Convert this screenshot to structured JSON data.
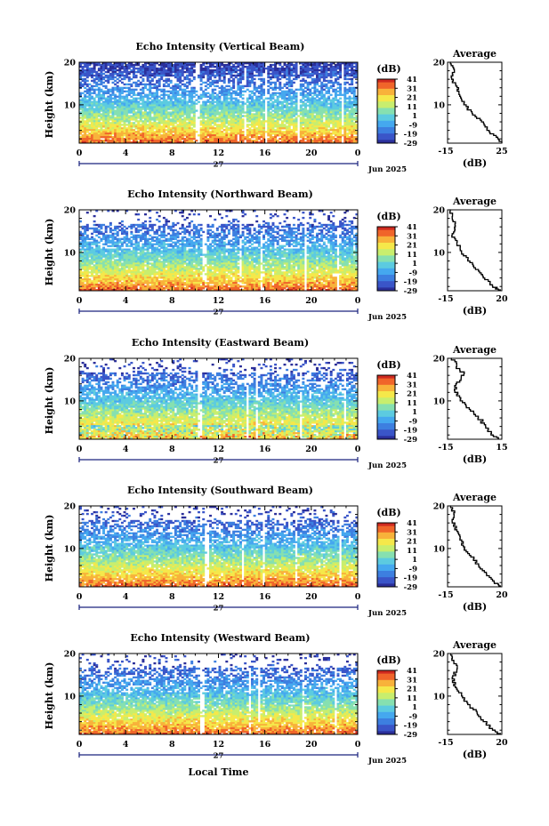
{
  "figure": {
    "x_axis_label": "Local Time",
    "y_axis_label": "Height (km)",
    "colorbar_unit": "(dB)",
    "colorbar_ticks": [
      "41",
      "31",
      "21",
      "11",
      "1",
      "-9",
      "-19",
      "-29"
    ],
    "day_label": "27",
    "month_label": "Jun 2025",
    "avg_title": "Average",
    "avg_xlabel": "(dB)"
  },
  "colors": {
    "colormap": [
      "#2b2f9a",
      "#3a55c8",
      "#3d7fe0",
      "#45a8ef",
      "#5ccbe0",
      "#86e0b0",
      "#c8ee6e",
      "#f5e84a",
      "#f8b23a",
      "#f0652a",
      "#cf2a20"
    ],
    "axis": "#000000",
    "time_marker": "#1a237e"
  },
  "chart_data": [
    {
      "type": "heatmap",
      "title": "Echo Intensity (Vertical Beam)",
      "xlabel": "",
      "ylabel": "Height (km)",
      "xticks": [
        "0",
        "4",
        "8",
        "12",
        "16",
        "20",
        "0"
      ],
      "xlim": [
        0,
        24
      ],
      "ylim": [
        1,
        20
      ],
      "yticks": [
        "10",
        "20"
      ],
      "colorbar": {
        "unit": "(dB)",
        "range": [
          -29,
          41
        ],
        "ticks": [
          41,
          31,
          21,
          11,
          1,
          -9,
          -19,
          -29
        ]
      },
      "profile": {
        "title": "Average",
        "xlabel": "(dB)",
        "xticks": [
          "-15",
          "25"
        ],
        "xlim": [
          -15,
          25
        ],
        "heights": [
          20,
          18,
          16,
          14,
          12,
          10,
          8,
          6,
          4,
          2,
          1
        ],
        "values": [
          -13,
          -10,
          -12,
          -8,
          -6,
          -3,
          3,
          10,
          14,
          22,
          25
        ]
      }
    },
    {
      "type": "heatmap",
      "title": "Echo Intensity (Northward Beam)",
      "xlabel": "",
      "ylabel": "Height (km)",
      "xticks": [
        "0",
        "4",
        "8",
        "12",
        "16",
        "20",
        "0"
      ],
      "xlim": [
        0,
        24
      ],
      "ylim": [
        1,
        20
      ],
      "yticks": [
        "10",
        "20"
      ],
      "colorbar": {
        "unit": "(dB)",
        "range": [
          -29,
          41
        ],
        "ticks": [
          41,
          31,
          21,
          11,
          1,
          -9,
          -19,
          -29
        ]
      },
      "profile": {
        "title": "Average",
        "xlabel": "(dB)",
        "xticks": [
          "-15",
          "20"
        ],
        "xlim": [
          -15,
          20
        ],
        "heights": [
          20,
          18,
          16,
          14,
          12,
          10,
          8,
          6,
          4,
          2,
          1
        ],
        "values": [
          -13,
          -12,
          -10,
          -12,
          -9,
          -6,
          -2,
          3,
          8,
          14,
          19
        ]
      }
    },
    {
      "type": "heatmap",
      "title": "Echo Intensity (Eastward Beam)",
      "xlabel": "",
      "ylabel": "Height (km)",
      "xticks": [
        "0",
        "4",
        "8",
        "12",
        "16",
        "20",
        "0"
      ],
      "xlim": [
        0,
        24
      ],
      "ylim": [
        1,
        20
      ],
      "yticks": [
        "10",
        "20"
      ],
      "colorbar": {
        "unit": "(dB)",
        "range": [
          -29,
          41
        ],
        "ticks": [
          41,
          31,
          21,
          11,
          1,
          -9,
          -19,
          -29
        ]
      },
      "profile": {
        "title": "Average",
        "xlabel": "(dB)",
        "xticks": [
          "-15",
          "15"
        ],
        "xlim": [
          -15,
          15
        ],
        "heights": [
          20,
          18,
          16,
          14,
          12,
          10,
          8,
          6,
          4,
          2,
          1
        ],
        "values": [
          -13,
          -10,
          -6,
          -10,
          -11,
          -8,
          -3,
          2,
          6,
          9,
          13
        ]
      }
    },
    {
      "type": "heatmap",
      "title": "Echo Intensity (Southward Beam)",
      "xlabel": "",
      "ylabel": "Height (km)",
      "xticks": [
        "0",
        "4",
        "8",
        "12",
        "16",
        "20",
        "0"
      ],
      "xlim": [
        0,
        24
      ],
      "ylim": [
        1,
        20
      ],
      "yticks": [
        "10",
        "20"
      ],
      "colorbar": {
        "unit": "(dB)",
        "range": [
          -29,
          41
        ],
        "ticks": [
          41,
          31,
          21,
          11,
          1,
          -9,
          -19,
          -29
        ]
      },
      "profile": {
        "title": "Average",
        "xlabel": "(dB)",
        "xticks": [
          "-15",
          "20"
        ],
        "xlim": [
          -15,
          20
        ],
        "heights": [
          20,
          18,
          16,
          14,
          12,
          10,
          8,
          6,
          4,
          2,
          1
        ],
        "values": [
          -13,
          -11,
          -12,
          -9,
          -7,
          -4,
          0,
          5,
          10,
          15,
          19
        ]
      }
    },
    {
      "type": "heatmap",
      "title": "Echo Intensity (Westward Beam)",
      "xlabel": "Local Time",
      "ylabel": "Height (km)",
      "xticks": [
        "0",
        "4",
        "8",
        "12",
        "16",
        "20",
        "0"
      ],
      "xlim": [
        0,
        24
      ],
      "ylim": [
        1,
        20
      ],
      "yticks": [
        "10",
        "20"
      ],
      "colorbar": {
        "unit": "(dB)",
        "range": [
          -29,
          41
        ],
        "ticks": [
          41,
          31,
          21,
          11,
          1,
          -9,
          -19,
          -29
        ]
      },
      "profile": {
        "title": "Average",
        "xlabel": "(dB)",
        "xticks": [
          "-15",
          "20"
        ],
        "xlim": [
          -15,
          20
        ],
        "heights": [
          20,
          18,
          16,
          14,
          12,
          10,
          8,
          6,
          4,
          2,
          1
        ],
        "values": [
          -13,
          -11,
          -9,
          -12,
          -10,
          -6,
          -2,
          4,
          8,
          14,
          19
        ]
      }
    }
  ]
}
